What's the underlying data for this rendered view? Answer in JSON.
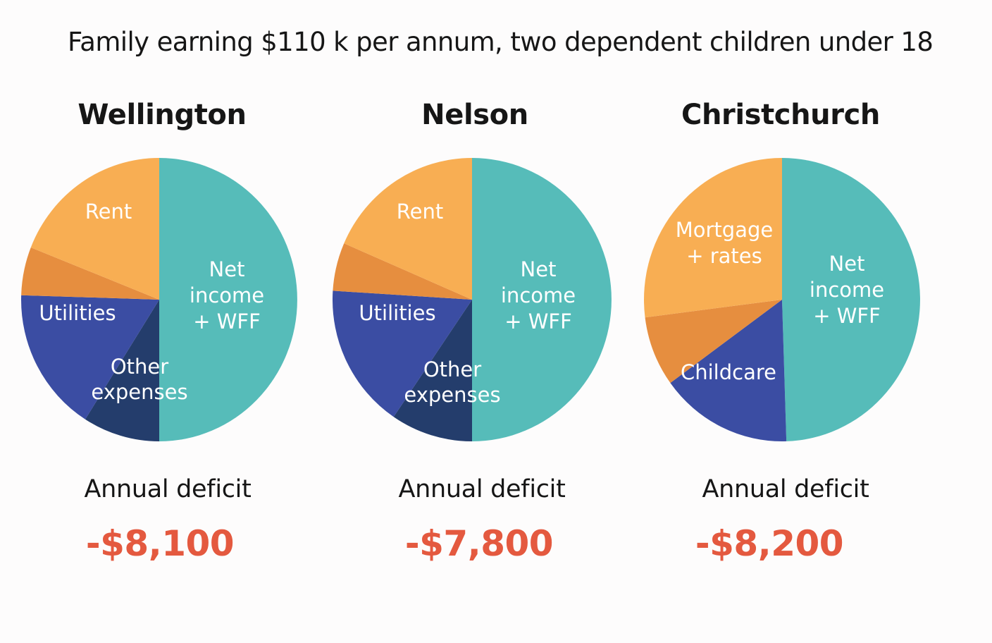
{
  "title": "Family earning $110 k per annum, two dependent children under 18",
  "colors": {
    "net_income": "#56bcb9",
    "housing": "#f8ae53",
    "orange_dark": "#e68e3f",
    "utilities": "#3b4da3",
    "other_expenses": "#243d6c",
    "deficit": "#e4593f"
  },
  "chart_data": [
    {
      "type": "pie",
      "title": "Wellington",
      "slices": [
        {
          "name": "Net income + WFF",
          "label_lines": [
            "Net",
            "income",
            "+ WFF"
          ],
          "value": 50.0,
          "color_key": "net_income"
        },
        {
          "name": "Other expenses",
          "label_lines": [
            "Other",
            "expenses"
          ],
          "value": 9.0,
          "color_key": "other_expenses"
        },
        {
          "name": "Utilities",
          "label_lines": [
            "Utilities"
          ],
          "value": 16.5,
          "color_key": "utilities"
        },
        {
          "name": "Unlabeled",
          "label_lines": [],
          "value": 5.5,
          "color_key": "orange_dark"
        },
        {
          "name": "Rent",
          "label_lines": [
            "Rent"
          ],
          "value": 19.0,
          "color_key": "housing"
        }
      ],
      "deficit_label": "Annual deficit",
      "deficit_value": "-$8,100"
    },
    {
      "type": "pie",
      "title": "Nelson",
      "slices": [
        {
          "name": "Net income + WFF",
          "label_lines": [
            "Net",
            "income",
            "+ WFF"
          ],
          "value": 50.0,
          "color_key": "net_income"
        },
        {
          "name": "Other expenses",
          "label_lines": [
            "Other",
            "expenses"
          ],
          "value": 9.5,
          "color_key": "other_expenses"
        },
        {
          "name": "Utilities",
          "label_lines": [
            "Utilities"
          ],
          "value": 16.5,
          "color_key": "utilities"
        },
        {
          "name": "Unlabeled",
          "label_lines": [],
          "value": 5.5,
          "color_key": "orange_dark"
        },
        {
          "name": "Rent",
          "label_lines": [
            "Rent"
          ],
          "value": 18.5,
          "color_key": "housing"
        }
      ],
      "deficit_label": "Annual deficit",
      "deficit_value": "-$7,800"
    },
    {
      "type": "pie",
      "title": "Christchurch",
      "slices": [
        {
          "name": "Net income + WFF",
          "label_lines": [
            "Net",
            "income",
            "+ WFF"
          ],
          "value": 49.5,
          "color_key": "net_income"
        },
        {
          "name": "Childcare",
          "label_lines": [
            "Childcare"
          ],
          "value": 15.5,
          "color_key": "utilities"
        },
        {
          "name": "Unlabeled",
          "label_lines": [],
          "value": 8.0,
          "color_key": "orange_dark"
        },
        {
          "name": "Mortgage + rates",
          "label_lines": [
            "Mortgage",
            "+ rates"
          ],
          "value": 27.0,
          "color_key": "housing"
        }
      ],
      "deficit_label": "Annual deficit",
      "deficit_value": "-$8,200"
    }
  ]
}
